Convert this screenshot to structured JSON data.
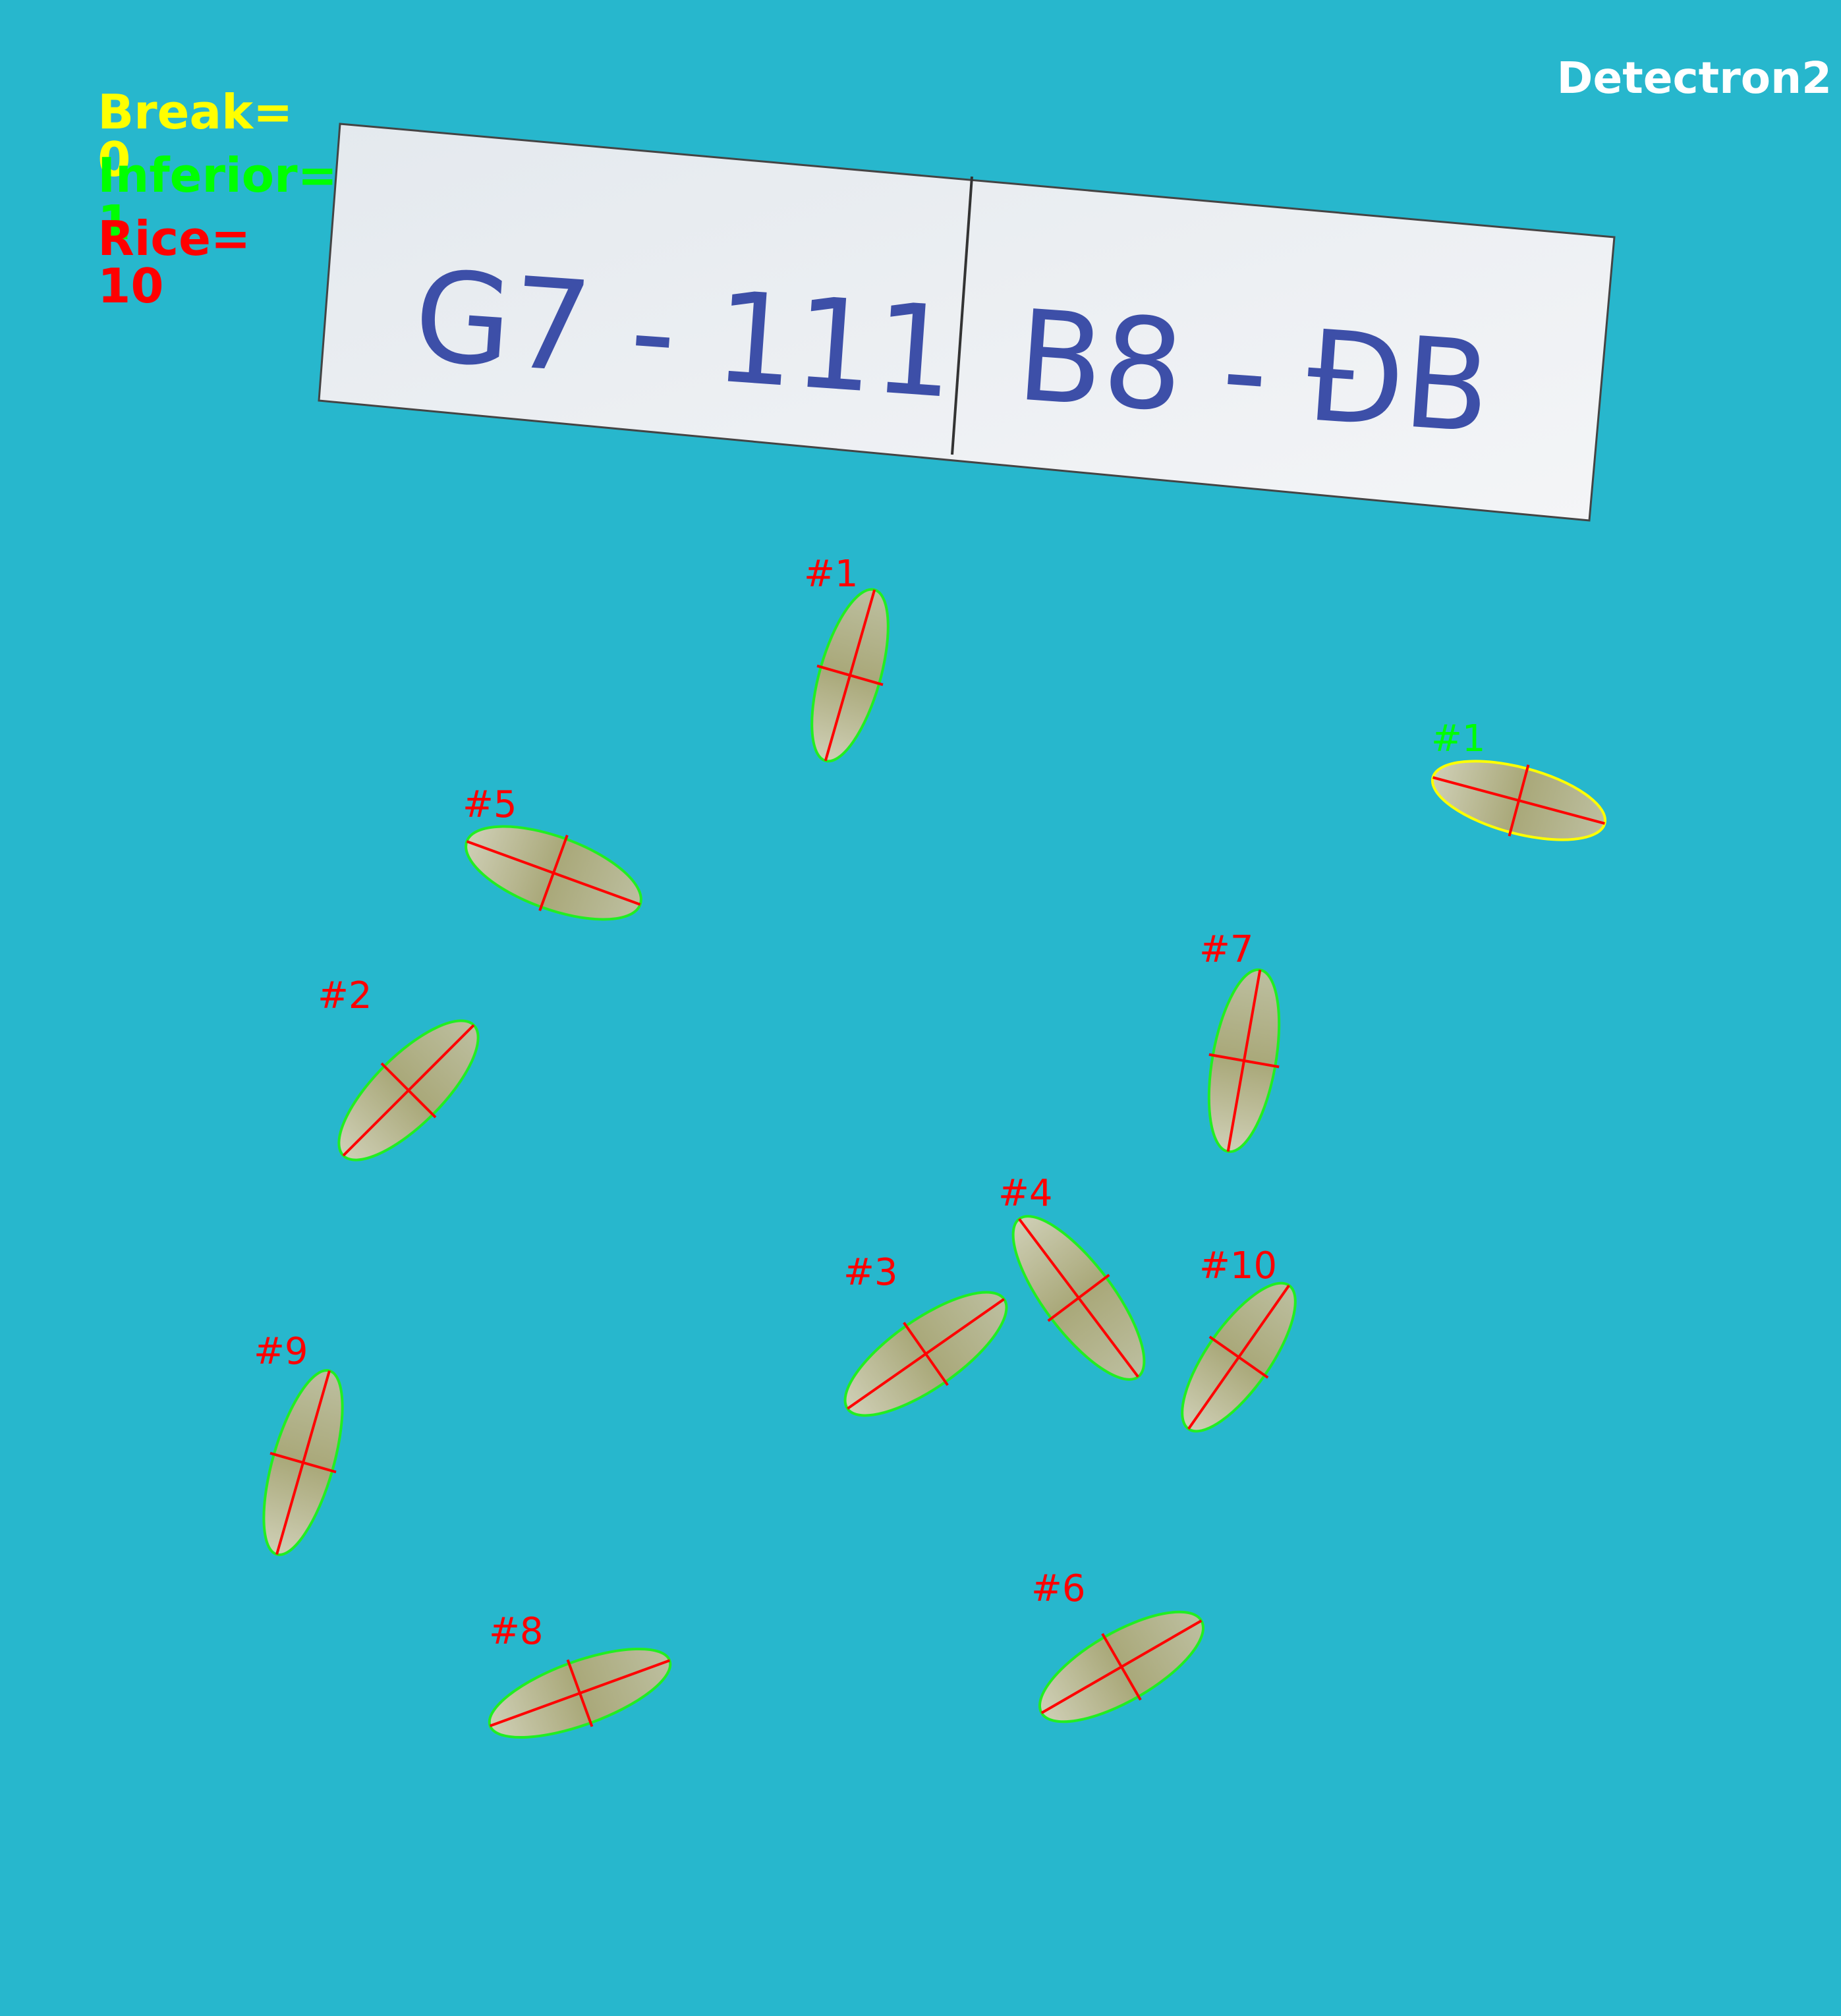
{
  "overlay": {
    "counts": [
      {
        "label": "Break=",
        "value": "0",
        "color": "#ffff00"
      },
      {
        "label": "Inferior=",
        "value": "1",
        "color": "#00ff00"
      },
      {
        "label": "Rice=",
        "value": "10",
        "color": "#ff0000"
      }
    ],
    "model_name": "Detectron2"
  },
  "label_paper": {
    "left_text": "G7 - 111",
    "right_text": "B8 - ĐB"
  },
  "grains": [
    {
      "tag": "#1",
      "category": "rice",
      "color": "#ff0000"
    },
    {
      "tag": "#1",
      "category": "inferior",
      "color": "#00ff00"
    },
    {
      "tag": "#5",
      "category": "rice",
      "color": "#ff0000"
    },
    {
      "tag": "#7",
      "category": "rice",
      "color": "#ff0000"
    },
    {
      "tag": "#2",
      "category": "rice",
      "color": "#ff0000"
    },
    {
      "tag": "#4",
      "category": "rice",
      "color": "#ff0000"
    },
    {
      "tag": "#3",
      "category": "rice",
      "color": "#ff0000"
    },
    {
      "tag": "#10",
      "category": "rice",
      "color": "#ff0000"
    },
    {
      "tag": "#9",
      "category": "rice",
      "color": "#ff0000"
    },
    {
      "tag": "#6",
      "category": "rice",
      "color": "#ff0000"
    },
    {
      "tag": "#8",
      "category": "rice",
      "color": "#ff0000"
    }
  ],
  "colors": {
    "background": "#27b7cd",
    "rice_outline": "#22ee22",
    "inferior_outline": "#ffff00",
    "axis_line": "#ff0000"
  }
}
